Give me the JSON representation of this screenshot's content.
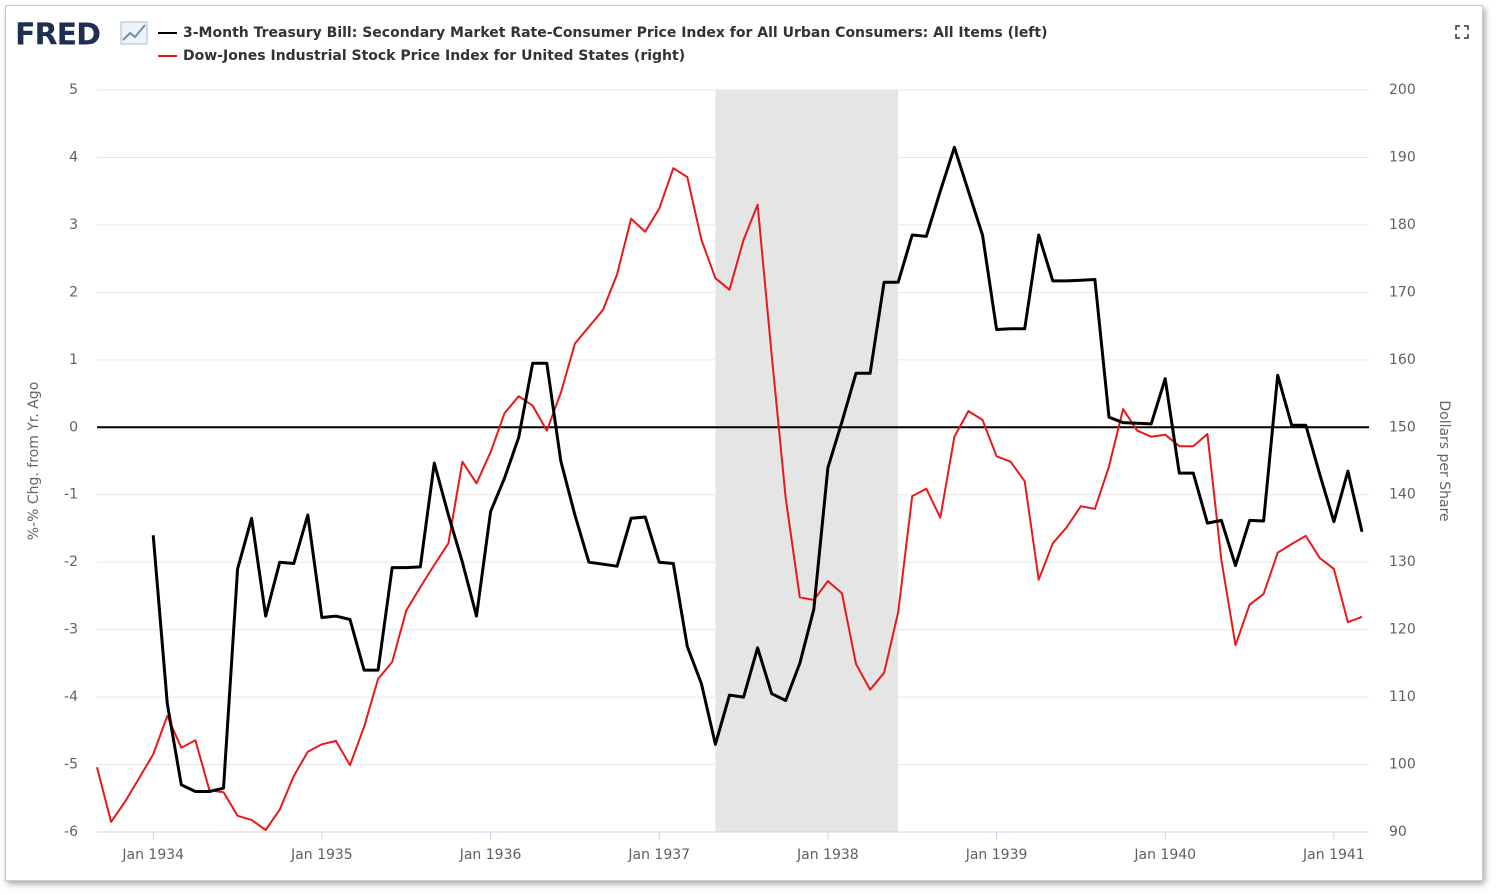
{
  "logo": "FRED",
  "chart_data": {
    "type": "line",
    "x": [
      "1933-09",
      "1933-10",
      "1933-11",
      "1933-12",
      "1934-01",
      "1934-02",
      "1934-03",
      "1934-04",
      "1934-05",
      "1934-06",
      "1934-07",
      "1934-08",
      "1934-09",
      "1934-10",
      "1934-11",
      "1934-12",
      "1935-01",
      "1935-02",
      "1935-03",
      "1935-04",
      "1935-05",
      "1935-06",
      "1935-07",
      "1935-08",
      "1935-09",
      "1935-10",
      "1935-11",
      "1935-12",
      "1936-01",
      "1936-02",
      "1936-03",
      "1936-04",
      "1936-05",
      "1936-06",
      "1936-07",
      "1936-08",
      "1936-09",
      "1936-10",
      "1936-11",
      "1936-12",
      "1937-01",
      "1937-02",
      "1937-03",
      "1937-04",
      "1937-05",
      "1937-06",
      "1937-07",
      "1937-08",
      "1937-09",
      "1937-10",
      "1937-11",
      "1937-12",
      "1938-01",
      "1938-02",
      "1938-03",
      "1938-04",
      "1938-05",
      "1938-06",
      "1938-07",
      "1938-08",
      "1938-09",
      "1938-10",
      "1938-11",
      "1938-12",
      "1939-01",
      "1939-02",
      "1939-03",
      "1939-04",
      "1939-05",
      "1939-06",
      "1939-07",
      "1939-08",
      "1939-09",
      "1939-10",
      "1939-11",
      "1939-12",
      "1940-01",
      "1940-02",
      "1940-03",
      "1940-04",
      "1940-05",
      "1940-06",
      "1940-07",
      "1940-08",
      "1940-09",
      "1940-10",
      "1940-11",
      "1940-12",
      "1941-01",
      "1941-02",
      "1941-03"
    ],
    "series": [
      {
        "name": "3-Month Treasury Bill: Secondary Market Rate-Consumer Price Index for All Urban Consumers: All Items (left)",
        "color": "#000000",
        "axis": "y",
        "values": [
          null,
          null,
          null,
          null,
          -1.6,
          -4.1,
          -5.3,
          -5.4,
          -5.4,
          -5.35,
          -2.1,
          -1.35,
          -2.8,
          -2.0,
          -2.02,
          -1.3,
          -2.82,
          -2.8,
          -2.85,
          -3.6,
          -3.6,
          -2.08,
          -2.08,
          -2.07,
          -0.53,
          -1.3,
          -2.0,
          -2.8,
          -1.25,
          -0.75,
          -0.15,
          0.95,
          0.95,
          -0.5,
          -1.3,
          -2.0,
          -2.03,
          -2.06,
          -1.35,
          -1.33,
          -2.0,
          -2.02,
          -3.25,
          -3.8,
          -4.7,
          -3.97,
          -4.0,
          -3.27,
          -3.95,
          -4.05,
          -3.5,
          -2.7,
          -0.6,
          0.08,
          0.8,
          0.8,
          2.15,
          2.15,
          2.85,
          2.83,
          3.5,
          4.15,
          3.5,
          2.85,
          1.45,
          1.46,
          1.46,
          2.85,
          2.17,
          2.17,
          2.18,
          2.19,
          0.15,
          0.07,
          0.06,
          0.05,
          0.72,
          -0.68,
          -0.68,
          -1.42,
          -1.38,
          -2.05,
          -1.38,
          -1.39,
          0.77,
          0.03,
          0.03,
          -0.7,
          -1.4,
          -0.65,
          -1.55
        ]
      },
      {
        "name": "Dow-Jones Industrial Stock Price Index for United States (right)",
        "color": "#e8191b",
        "axis": "y2",
        "values": [
          99.6,
          91.5,
          94.5,
          98,
          101.5,
          107.2,
          102.5,
          103.6,
          96.2,
          95.9,
          92.4,
          91.8,
          90.3,
          93.3,
          98.3,
          101.9,
          103.0,
          103.5,
          99.9,
          105.6,
          112.7,
          115.2,
          122.8,
          126.3,
          129.6,
          132.8,
          144.9,
          141.7,
          146.3,
          152.1,
          154.6,
          153.2,
          149.5,
          155.1,
          162.4,
          164.9,
          167.4,
          172.7,
          180.9,
          179,
          182.4,
          188.4,
          187.1,
          177.8,
          172.1,
          170.4,
          177.8,
          183,
          160.7,
          139.5,
          124.8,
          124.4,
          127.2,
          125.4,
          114.9,
          111.1,
          113.6,
          122.6,
          139.8,
          140.9,
          136.6,
          148.6,
          152.4,
          151.1,
          145.7,
          144.9,
          142,
          127.4,
          132.8,
          135.2,
          138.3,
          137.9,
          144.2,
          152.7,
          149.5,
          148.6,
          148.9,
          147.2,
          147.2,
          149,
          130.3,
          117.7,
          123.7,
          125.3,
          131.4,
          132.7,
          133.9,
          130.6,
          129,
          121.1,
          121.9
        ]
      }
    ],
    "xlim": [
      "1933-09",
      "1941-03"
    ],
    "xticks": [
      {
        "value": "1934-01",
        "label": "Jan 1934"
      },
      {
        "value": "1935-01",
        "label": "Jan 1935"
      },
      {
        "value": "1936-01",
        "label": "Jan 1936"
      },
      {
        "value": "1937-01",
        "label": "Jan 1937"
      },
      {
        "value": "1938-01",
        "label": "Jan 1938"
      },
      {
        "value": "1939-01",
        "label": "Jan 1939"
      },
      {
        "value": "1940-01",
        "label": "Jan 1940"
      },
      {
        "value": "1941-01",
        "label": "Jan 1941"
      }
    ],
    "ylim": [
      -6,
      5
    ],
    "yticks": [
      -6,
      -5,
      -4,
      -3,
      -2,
      -1,
      0,
      1,
      2,
      3,
      4,
      5
    ],
    "y2lim": [
      90,
      200
    ],
    "y2ticks": [
      90,
      100,
      110,
      120,
      130,
      140,
      150,
      160,
      170,
      180,
      190,
      200
    ],
    "ylabel": "%-% Chg. from Yr. Ago",
    "y2label": "Dollars per Share",
    "reference_line": 0,
    "recessions": [
      {
        "start": "1937-05",
        "end": "1938-06"
      }
    ],
    "grid": true
  }
}
